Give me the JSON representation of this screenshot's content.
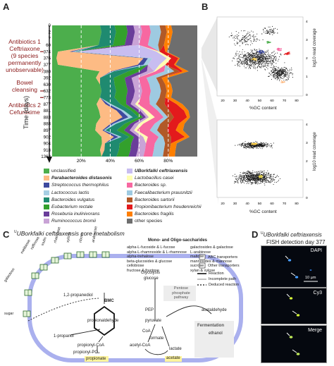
{
  "panels": {
    "A": "A",
    "B": "B",
    "C": "C",
    "D": "D"
  },
  "panelA": {
    "ylabel": "Time (days)",
    "days": [
      "0",
      "2",
      "7",
      "60",
      "374",
      "376",
      "377",
      "380",
      "392",
      "630",
      "632",
      "773",
      "877",
      "881",
      "883",
      "888",
      "897",
      "902",
      "904",
      "918",
      "1362"
    ],
    "events": [
      {
        "text": "Antibiotics 1\nCeftriaxone\n(9 species\npermanently\nunobservable)"
      },
      {
        "text": "Bowel\ncleansing"
      },
      {
        "text": "Antibiotics 2\nCefuroxime"
      }
    ],
    "xticks": [
      "20%",
      "40%",
      "60%",
      "80%"
    ]
  },
  "chart_data": {
    "type": "area",
    "xlabel": "",
    "ylabel": "Time (days)",
    "xticks": [
      "20%",
      "40%",
      "60%",
      "80%"
    ],
    "categories": [
      "0",
      "2",
      "7",
      "60",
      "374",
      "376",
      "377",
      "380",
      "392",
      "630",
      "632",
      "773",
      "877",
      "881",
      "883",
      "888",
      "897",
      "902",
      "904",
      "918",
      "1362"
    ],
    "series": [
      {
        "name": "unclassified",
        "color": "#4cae4c",
        "values": [
          33,
          34,
          33,
          32,
          4,
          3,
          4,
          33,
          32,
          33,
          34,
          33,
          30,
          32,
          33,
          31,
          30,
          32,
          34,
          33,
          33
        ]
      },
      {
        "name": "Parabacteroides distasonis",
        "color": "#fdbb84",
        "values": [
          0,
          0,
          0,
          0,
          8,
          60,
          55,
          8,
          3,
          0,
          0,
          0,
          6,
          12,
          15,
          10,
          5,
          8,
          2,
          3,
          0
        ]
      },
      {
        "name": "Streptococcus thermophilus",
        "color": "#3e4a9f",
        "values": [
          0,
          0,
          0,
          0,
          2,
          3,
          4,
          1,
          0,
          0,
          0,
          0,
          2,
          3,
          4,
          2,
          1,
          3,
          0,
          0,
          0
        ]
      },
      {
        "name": "Lactococcus lactis",
        "color": "#a6cee3",
        "values": [
          0,
          0,
          0,
          0,
          2,
          3,
          3,
          1,
          0,
          0,
          0,
          0,
          2,
          2,
          3,
          2,
          1,
          2,
          0,
          0,
          0
        ]
      },
      {
        "name": "Bacteroides vulgatus",
        "color": "#1f8a70",
        "values": [
          10,
          10,
          10,
          10,
          1,
          0,
          0,
          10,
          10,
          10,
          10,
          10,
          6,
          5,
          4,
          6,
          8,
          5,
          10,
          10,
          10
        ]
      },
      {
        "name": "Eubacterium rectale",
        "color": "#33a02c",
        "values": [
          8,
          8,
          8,
          8,
          0,
          0,
          0,
          8,
          8,
          8,
          8,
          8,
          4,
          3,
          3,
          4,
          5,
          3,
          8,
          8,
          8
        ]
      },
      {
        "name": "Roseburia inulinivorans",
        "color": "#6a3d9a",
        "values": [
          5,
          5,
          5,
          5,
          0,
          0,
          0,
          5,
          5,
          5,
          5,
          5,
          3,
          3,
          2,
          3,
          4,
          3,
          5,
          5,
          5
        ]
      },
      {
        "name": "Ruminococcus bromii",
        "color": "#c9a3d6",
        "values": [
          5,
          5,
          5,
          5,
          0,
          0,
          0,
          5,
          5,
          5,
          5,
          5,
          3,
          2,
          2,
          3,
          3,
          3,
          5,
          5,
          5
        ]
      },
      {
        "name": "Borkfalki ceftriaxensis",
        "color": "#c8bdf0",
        "values": [
          0,
          0,
          0,
          0,
          55,
          10,
          8,
          0,
          0,
          0,
          0,
          0,
          0,
          0,
          0,
          0,
          0,
          0,
          0,
          0,
          0
        ]
      },
      {
        "name": "Lactobacillus casei",
        "color": "#ffffb3",
        "values": [
          0,
          0,
          0,
          0,
          2,
          3,
          4,
          1,
          0,
          0,
          0,
          0,
          2,
          3,
          4,
          3,
          2,
          3,
          0,
          0,
          0
        ]
      },
      {
        "name": "Bacteroides sp.",
        "color": "#f768a1",
        "values": [
          6,
          6,
          6,
          6,
          0,
          0,
          0,
          6,
          6,
          6,
          6,
          6,
          8,
          7,
          6,
          8,
          9,
          7,
          6,
          6,
          6
        ]
      },
      {
        "name": "Faecalibacterium prausnitzii",
        "color": "#9ecae1",
        "values": [
          7,
          7,
          7,
          7,
          0,
          0,
          0,
          7,
          7,
          7,
          7,
          7,
          4,
          3,
          3,
          4,
          5,
          3,
          7,
          7,
          7
        ]
      },
      {
        "name": "Bacteroides sartorii",
        "color": "#b15928",
        "values": [
          4,
          4,
          4,
          4,
          0,
          0,
          0,
          4,
          4,
          4,
          4,
          4,
          6,
          5,
          4,
          6,
          7,
          5,
          4,
          4,
          4
        ]
      },
      {
        "name": "Propionibacterium freudenreichii",
        "color": "#e31a1c",
        "values": [
          0,
          0,
          0,
          0,
          4,
          5,
          6,
          2,
          0,
          0,
          0,
          0,
          8,
          10,
          9,
          7,
          6,
          9,
          0,
          0,
          0
        ]
      },
      {
        "name": "Bacteroides fragilis",
        "color": "#ff7f00",
        "values": [
          4,
          4,
          4,
          4,
          1,
          1,
          1,
          4,
          4,
          4,
          4,
          4,
          4,
          3,
          2,
          4,
          5,
          3,
          4,
          4,
          4
        ]
      },
      {
        "name": "other species",
        "color": "#6e6e6e",
        "values": [
          18,
          17,
          18,
          19,
          21,
          12,
          15,
          6,
          22,
          18,
          17,
          18,
          10,
          6,
          5,
          9,
          10,
          5,
          14,
          15,
          15
        ]
      }
    ]
  },
  "legend": [
    {
      "label": "unclassified",
      "color": "#4cae4c",
      "style": ""
    },
    {
      "label": "Parabacteroides distasonis",
      "color": "#fdbb84",
      "style": "bold it"
    },
    {
      "label": "Streptococcus thermophilus",
      "color": "#3e4a9f",
      "style": "it"
    },
    {
      "label": "Lactococcus lactis",
      "color": "#a6cee3",
      "style": "it"
    },
    {
      "label": "Bacteroides vulgatus",
      "color": "#1f8a70",
      "style": "it"
    },
    {
      "label": "Eubacterium rectale",
      "color": "#33a02c",
      "style": "it"
    },
    {
      "label": "Roseburia inulinivorans",
      "color": "#6a3d9a",
      "style": "it"
    },
    {
      "label": "Ruminococcus bromii",
      "color": "#c9a3d6",
      "style": "it"
    },
    {
      "label": "UBorkfalki ceftriaxensis",
      "color": "#c8bdf0",
      "style": "bold it"
    },
    {
      "label": "Lactobacillus casei",
      "color": "#ffffb3",
      "style": "it"
    },
    {
      "label": "Bacteroides sp.",
      "color": "#f768a1",
      "style": "it"
    },
    {
      "label": "Faecalibacterium prausnitzii",
      "color": "#9ecae1",
      "style": "it"
    },
    {
      "label": "Bacteroides sartorii",
      "color": "#b15928",
      "style": "it"
    },
    {
      "label": "Propionibacterium freudenreichii",
      "color": "#e31a1c",
      "style": "it"
    },
    {
      "label": "Bacteroides fragilis",
      "color": "#ff7f00",
      "style": "it"
    },
    {
      "label": "other species",
      "color": "#6e6e6e",
      "style": ""
    }
  ],
  "panelB": {
    "xlabel": "%GC content",
    "ylabel": "log10 read coverage",
    "xticks": [
      "20",
      "30",
      "40",
      "50",
      "60",
      "70",
      "80"
    ],
    "yticks_top": [
      "4",
      "3",
      "2",
      "1",
      "0"
    ],
    "yticks_bottom": [
      "4",
      "3",
      "2",
      "1",
      "0"
    ]
  },
  "panelC": {
    "title": "UBorkfalki ceftriaxensis core metabolism",
    "sugars_title": "Mono- and Oligo-saccharides",
    "sugars_left": [
      "alpha-L-fucoside & L-fucose",
      "alpha-L-rhamnoside & L-rhamnose",
      "alpha-trehalose",
      "beta-glucosides & glucose",
      "cellobiose",
      "fructose & fructose"
    ],
    "sugars_right": [
      "galactosides & galactose",
      "L-arabinose",
      "maltose",
      "mannosides & mannose",
      "sucrose",
      "xylan & xylose"
    ],
    "transporters": [
      "melibiose",
      "raffinose",
      "inulin",
      "rhamnose",
      "xylose",
      "ribose",
      "arabinose",
      "sugar",
      "galactose"
    ],
    "glycolysis": "Glycolysis",
    "glucose": "glucose",
    "pentose": "Pentose phosphate pathway",
    "pep": "PEP",
    "pyruvate": "pyruvate",
    "coa": "CoA",
    "formate": "formate",
    "acetyl_coa": "acetyl-CoA",
    "acetaldehyde": "acetaldehyde",
    "fermentation": "Fermentation",
    "ethanol": "ethanol",
    "lactate": "lactate",
    "acetate": "acetate",
    "propanediol": "1,2-propanediol",
    "bmc": "BMC",
    "propionaldehyde": "propionaldehyde",
    "propanol": "1-propanol",
    "propionyl_coa": "propionyl-CoA",
    "propionyl_po": "propionyl-PO₄",
    "propionate": "propionate",
    "key": [
      {
        "label": "ABC transporters"
      },
      {
        "label": "Other transporters"
      },
      {
        "label": "Reaction"
      },
      {
        "label": "Incomplete path"
      },
      {
        "label": "Deduced reaction"
      }
    ]
  },
  "panelD": {
    "title_line1": "UBorkfalki ceftriaxensis",
    "title_line2": "FISH detection day 377",
    "images": [
      {
        "label": "DAPI",
        "color": "#4aa0ff"
      },
      {
        "label": "Cy3",
        "color": "#d9ff3a"
      },
      {
        "label": "Merge",
        "color": "#bfe85a"
      }
    ],
    "scale": "10 µm"
  }
}
